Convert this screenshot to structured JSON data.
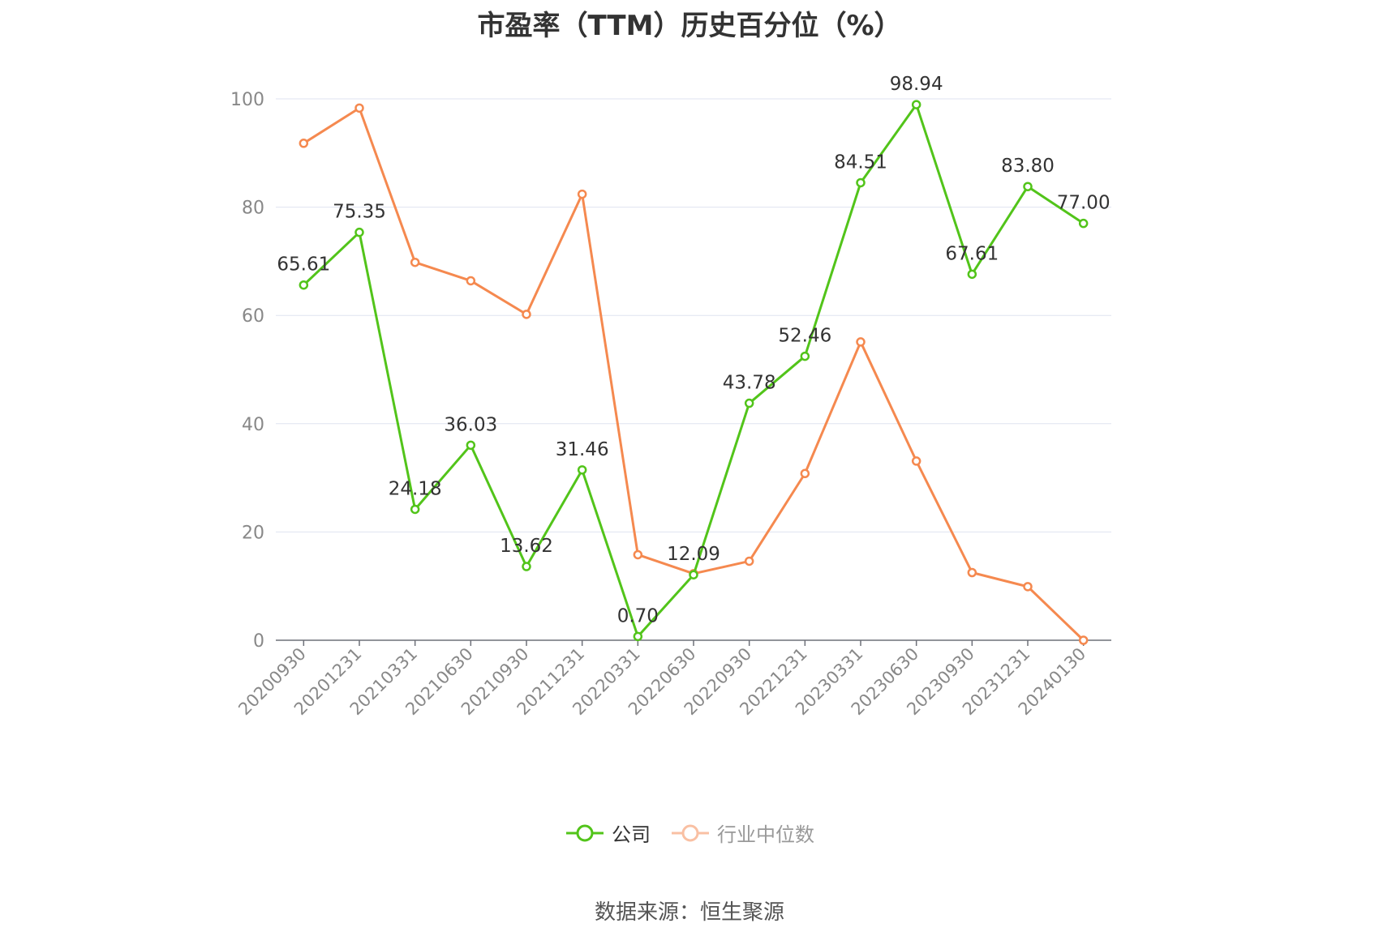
{
  "chart_data": {
    "type": "line",
    "title": "市盈率（TTM）历史百分位（%）",
    "x": [
      "20200930",
      "20201231",
      "20210331",
      "20210630",
      "20210930",
      "20211231",
      "20220331",
      "20220630",
      "20220930",
      "20221231",
      "20230331",
      "20230630",
      "20230930",
      "20231231",
      "20240130"
    ],
    "ylim": [
      0,
      100
    ],
    "yticks": [
      0,
      20,
      40,
      60,
      80,
      100
    ],
    "grid": true,
    "legend_position": "bottom",
    "series": [
      {
        "name": "公司",
        "color": "#52c41a",
        "show_labels": true,
        "values": [
          65.61,
          75.35,
          24.18,
          36.03,
          13.62,
          31.46,
          0.7,
          12.09,
          43.78,
          52.46,
          84.51,
          98.94,
          67.61,
          83.8,
          77.0
        ],
        "labels": [
          "65.61",
          "75.35",
          "24.18",
          "36.03",
          "13.62",
          "31.46",
          "0.70",
          "12.09",
          "43.78",
          "52.46",
          "84.51",
          "98.94",
          "67.61",
          "83.80",
          "77.00"
        ]
      },
      {
        "name": "行业中位数",
        "color": "#f5894f",
        "show_labels": false,
        "values": [
          91.8,
          98.3,
          69.8,
          66.4,
          60.2,
          82.4,
          15.8,
          12.3,
          14.6,
          30.8,
          55.1,
          33.1,
          12.5,
          9.9,
          0.0
        ]
      }
    ]
  },
  "footer": {
    "source": "数据来源：恒生聚源"
  }
}
